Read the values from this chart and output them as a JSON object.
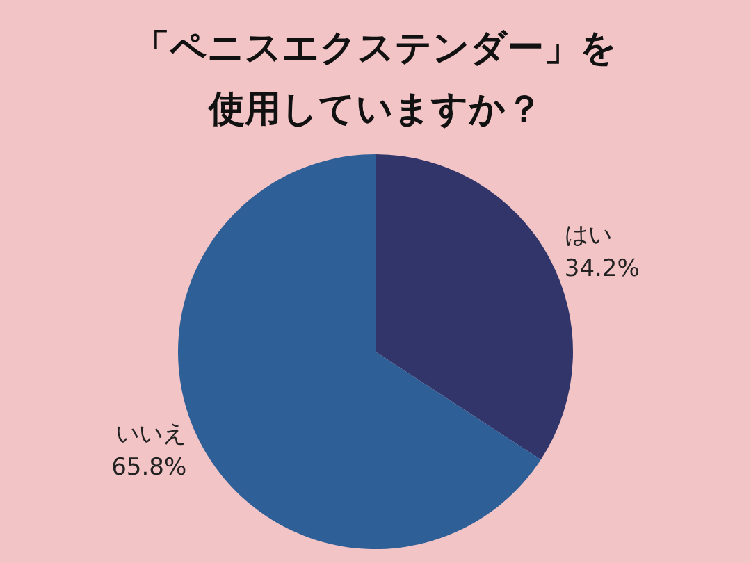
{
  "chart_data": {
    "type": "pie",
    "title": "「ペニスエクステンダー」を使用していますか？",
    "categories": [
      "はい",
      "いいえ"
    ],
    "values": [
      34.2,
      65.8
    ],
    "colors": [
      "#31356a",
      "#2f5f97"
    ],
    "value_labels": [
      "34.2%",
      "65.8%"
    ],
    "legend": false
  }
}
